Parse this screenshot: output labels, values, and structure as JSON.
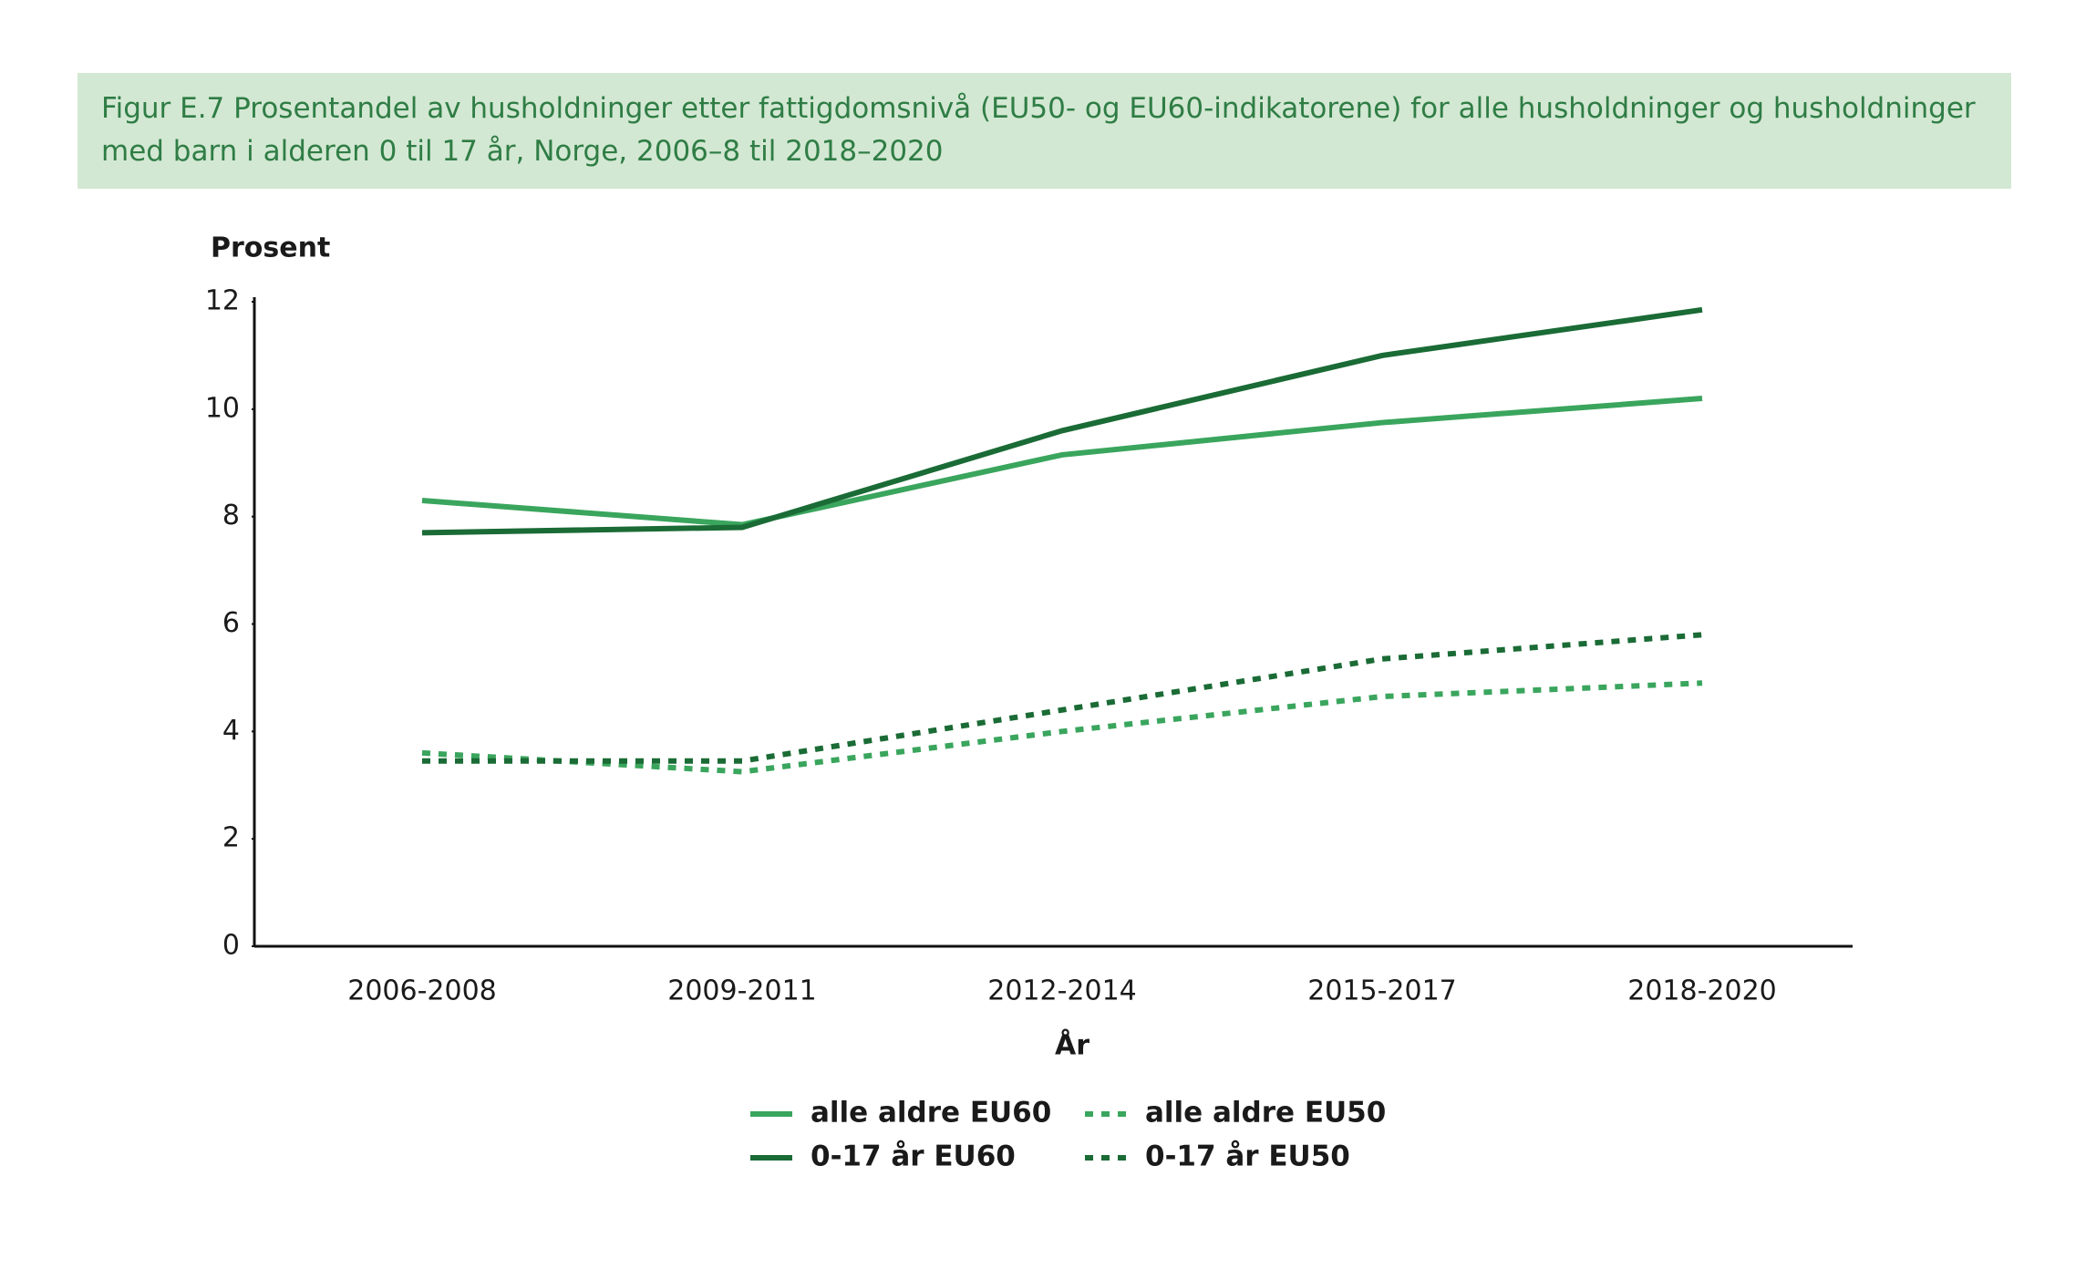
{
  "chart_data": {
    "type": "line",
    "title": "Figur E.7 Prosentandel av husholdninger etter fattigdomsnivå (EU50- og EU60-indikatorene) for alle husholdninger og husholdninger med barn i alderen 0 til 17 år, Norge, 2006–8 til 2018–2020",
    "y_label": "Prosent",
    "x_label": "År",
    "categories": [
      "2006-2008",
      "2009-2011",
      "2012-2014",
      "2015-2017",
      "2018-2020"
    ],
    "series": [
      {
        "name": "alle aldre EU60",
        "color": "#3aa55d",
        "style": "solid",
        "values": [
          8.3,
          7.85,
          9.15,
          9.75,
          10.2
        ]
      },
      {
        "name": "alle aldre EU50",
        "color": "#3aa55d",
        "style": "dotted",
        "values": [
          3.6,
          3.25,
          4.0,
          4.65,
          4.9
        ]
      },
      {
        "name": "0-17 år EU60",
        "color": "#1a6b35",
        "style": "solid",
        "values": [
          7.7,
          7.8,
          9.6,
          11.0,
          11.85
        ]
      },
      {
        "name": "0-17 år EU50",
        "color": "#1a6b35",
        "style": "dotted",
        "values": [
          3.45,
          3.45,
          4.4,
          5.35,
          5.8
        ]
      }
    ],
    "ylim": [
      0,
      12
    ],
    "yticks": [
      0,
      2,
      4,
      6,
      8,
      10,
      12
    ],
    "grid": false
  }
}
